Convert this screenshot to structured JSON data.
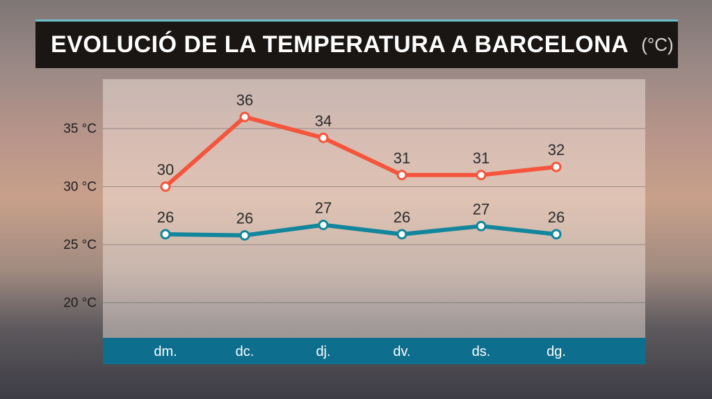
{
  "title": "EVOLUCIÓ DE LA TEMPERATURA A BARCELONA",
  "unit": "(°C)",
  "colors": {
    "max_line": "#f4553c",
    "min_line": "#12869c",
    "axis_bar": "#0d6e8e",
    "title_bg": "#1a1614",
    "title_accent": "#6cc0cc"
  },
  "chart_data": {
    "type": "line",
    "categories": [
      "dm.",
      "dc.",
      "dj.",
      "dv.",
      "ds.",
      "dg."
    ],
    "series": [
      {
        "values": [
          30,
          36,
          34,
          31,
          31,
          32
        ],
        "labels": [
          "30",
          "36",
          "34",
          "31",
          "31",
          "32"
        ],
        "color": "#f4553c"
      },
      {
        "values": [
          26,
          26,
          27,
          26,
          27,
          26
        ],
        "labels": [
          "26",
          "26",
          "27",
          "26",
          "27",
          "26"
        ],
        "color": "#12869c"
      }
    ],
    "plotted_values": [
      [
        30,
        36,
        34.2,
        31,
        31,
        31.7
      ],
      [
        25.9,
        25.8,
        26.7,
        25.9,
        26.6,
        25.9
      ]
    ],
    "yticks": [
      20,
      25,
      30,
      35
    ],
    "ytick_labels": [
      "20 °C",
      "25 °C",
      "30 °C",
      "35 °C"
    ],
    "ylim": [
      17,
      39
    ],
    "grid": true,
    "legend": "none"
  }
}
